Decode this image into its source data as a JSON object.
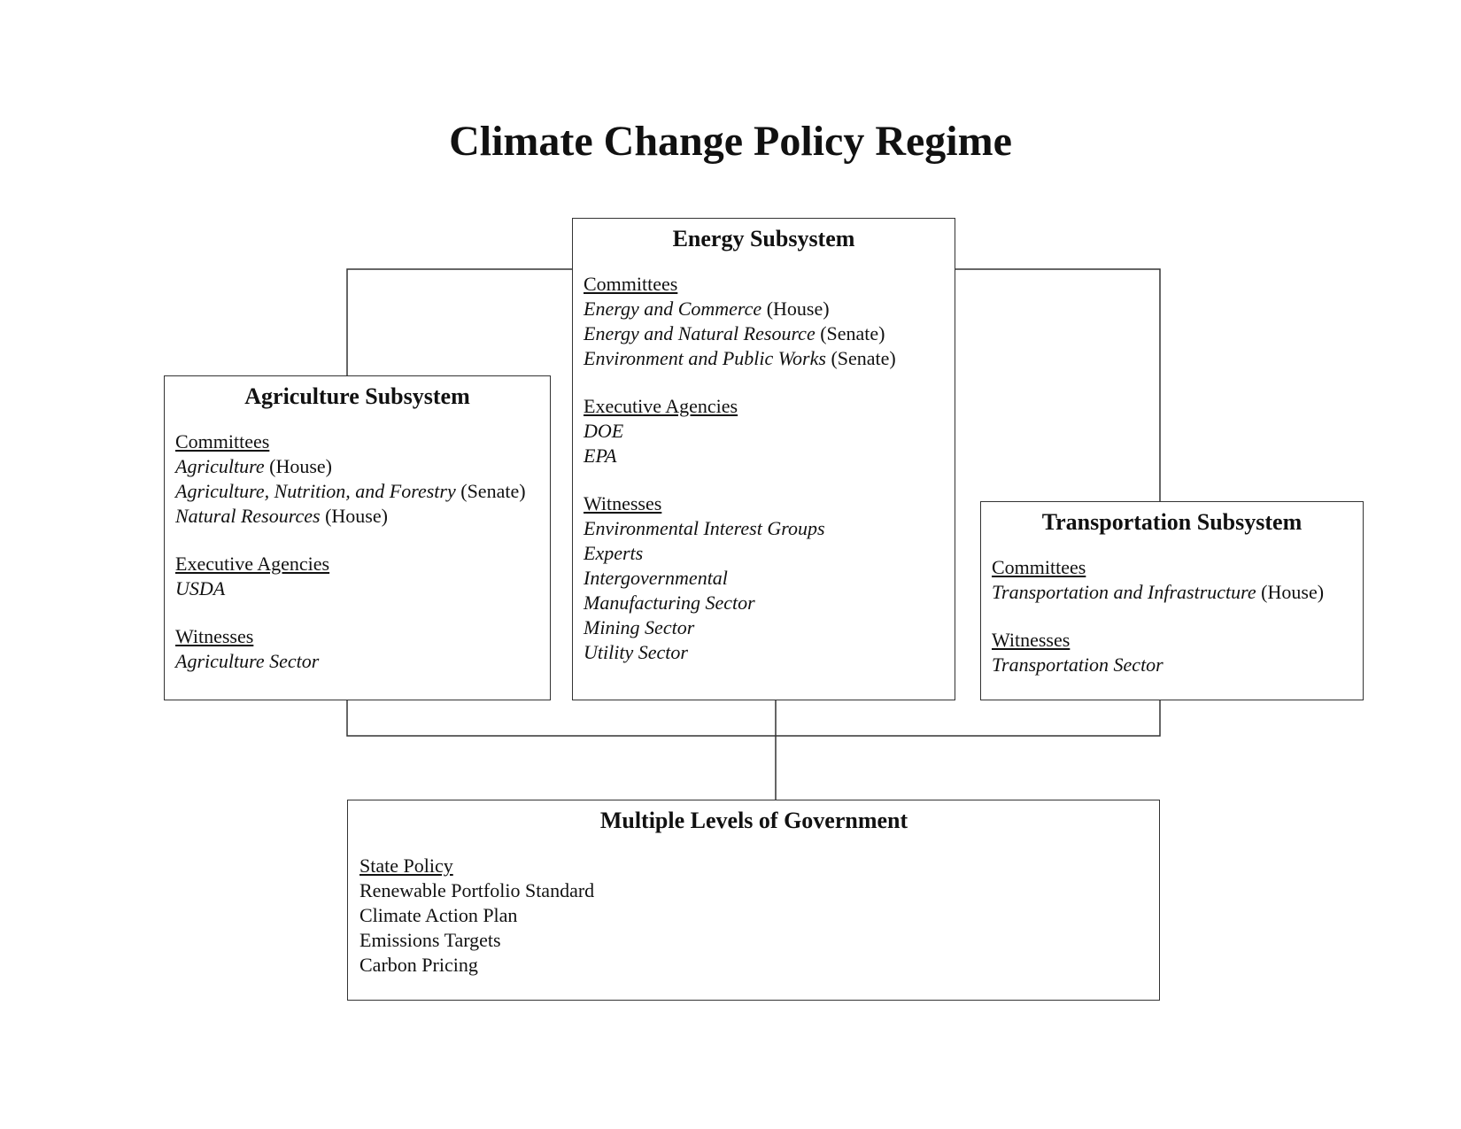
{
  "title": "Climate Change Policy Regime",
  "agriculture": {
    "heading": "Agriculture Subsystem",
    "sections": [
      {
        "label": "Committees",
        "items": [
          {
            "name": "Agriculture",
            "chamber": "(House)"
          },
          {
            "name": "Agriculture, Nutrition, and Forestry",
            "chamber": "(Senate)"
          },
          {
            "name": "Natural Resources",
            "chamber": "(House)"
          }
        ]
      },
      {
        "label": "Executive Agencies",
        "items": [
          {
            "name": "USDA",
            "chamber": ""
          }
        ]
      },
      {
        "label": "Witnesses",
        "items": [
          {
            "name": "Agriculture Sector",
            "chamber": ""
          }
        ]
      }
    ]
  },
  "energy": {
    "heading": "Energy Subsystem",
    "sections": [
      {
        "label": "Committees",
        "items": [
          {
            "name": "Energy and Commerce",
            "chamber": "(House)"
          },
          {
            "name": "Energy and Natural Resource",
            "chamber": "(Senate)"
          },
          {
            "name": "Environment and Public Works",
            "chamber": "(Senate)"
          }
        ]
      },
      {
        "label": "Executive Agencies",
        "items": [
          {
            "name": "DOE",
            "chamber": ""
          },
          {
            "name": "EPA",
            "chamber": ""
          }
        ]
      },
      {
        "label": "Witnesses",
        "items": [
          {
            "name": "Environmental Interest Groups",
            "chamber": ""
          },
          {
            "name": "Experts",
            "chamber": ""
          },
          {
            "name": "Intergovernmental",
            "chamber": ""
          },
          {
            "name": "Manufacturing Sector",
            "chamber": ""
          },
          {
            "name": "Mining Sector",
            "chamber": ""
          },
          {
            "name": "Utility Sector",
            "chamber": ""
          }
        ]
      }
    ]
  },
  "transportation": {
    "heading": "Transportation Subsystem",
    "sections": [
      {
        "label": "Committees",
        "items": [
          {
            "name": "Transportation and Infrastructure",
            "chamber": "(House)"
          }
        ]
      },
      {
        "label": "Witnesses",
        "items": [
          {
            "name": "Transportation Sector",
            "chamber": ""
          }
        ]
      }
    ]
  },
  "government": {
    "heading": "Multiple Levels of Government",
    "sections": [
      {
        "label": "State Policy",
        "items": [
          {
            "plain": "Renewable Portfolio Standard"
          },
          {
            "plain": "Climate Action Plan"
          },
          {
            "plain": "Emissions Targets"
          },
          {
            "plain": "Carbon Pricing"
          }
        ]
      }
    ]
  }
}
